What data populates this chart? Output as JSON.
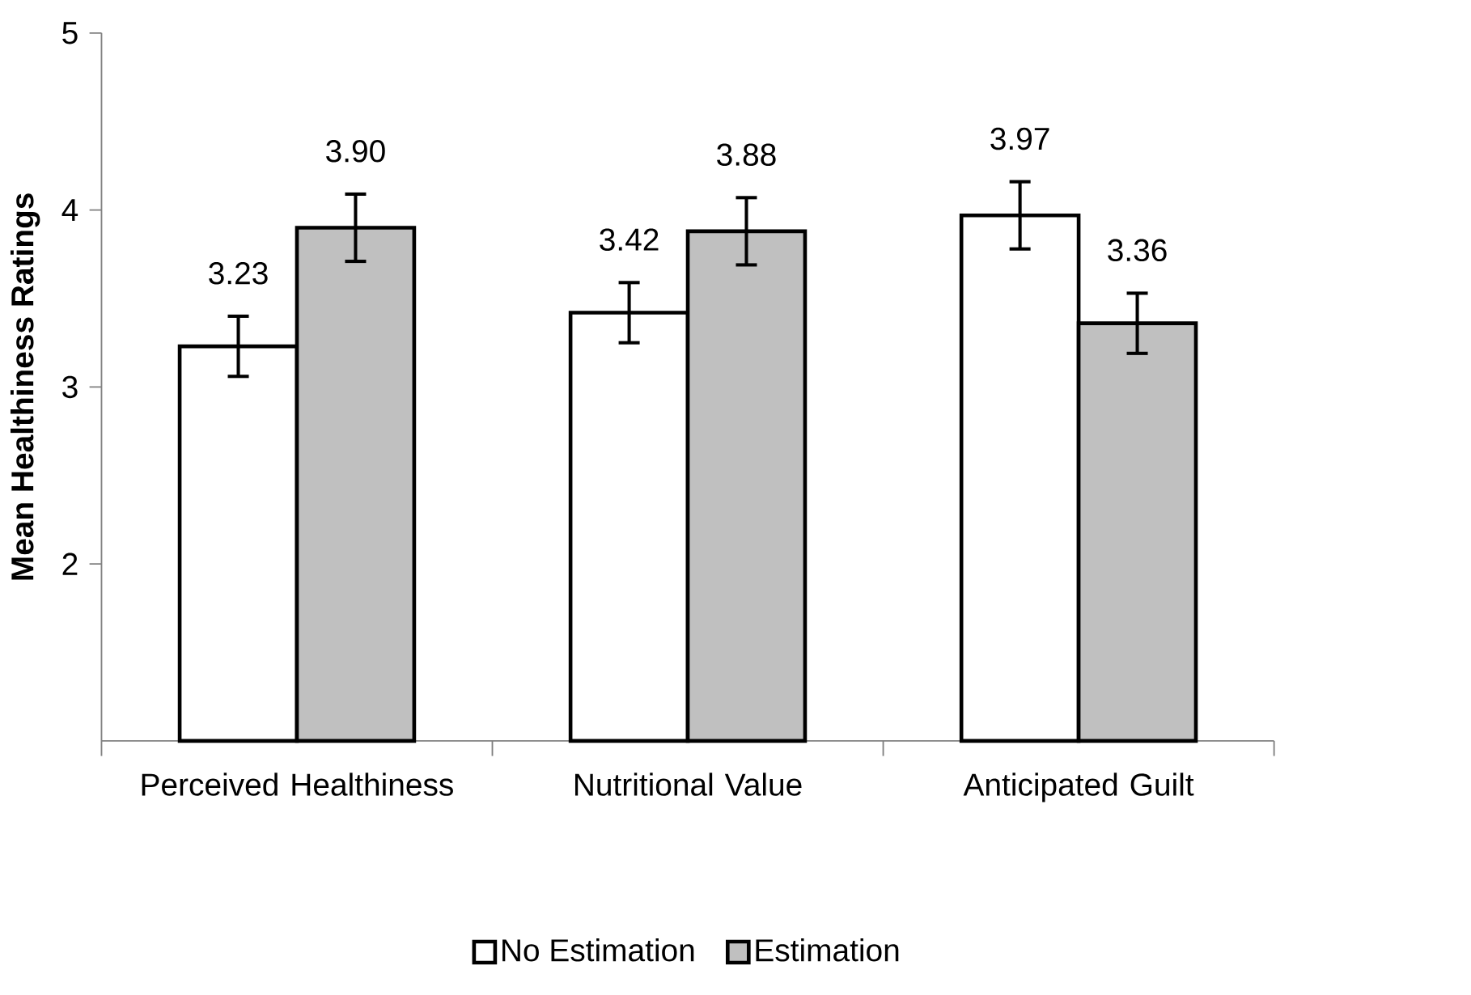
{
  "chart_data": {
    "type": "bar",
    "ylabel": "Mean Healthiness Ratings",
    "categories": [
      "Perceived Healthiness",
      "Nutritional Value",
      "Anticipated Guilt"
    ],
    "series": [
      {
        "name": "No Estimation",
        "color": "#ffffff",
        "values": [
          3.23,
          3.42,
          3.97
        ],
        "errors": [
          0.17,
          0.17,
          0.19
        ],
        "value_labels": [
          "3.23",
          "3.42",
          "3.97"
        ]
      },
      {
        "name": "Estimation",
        "color": "#c0c0c0",
        "values": [
          3.9,
          3.88,
          3.36
        ],
        "errors": [
          0.19,
          0.19,
          0.17
        ],
        "value_labels": [
          "3.90",
          "3.88",
          "3.36"
        ]
      }
    ],
    "ylim": [
      1,
      5
    ],
    "yticks": [
      2,
      3,
      4,
      5
    ],
    "grid": false,
    "legend": "bottom"
  }
}
